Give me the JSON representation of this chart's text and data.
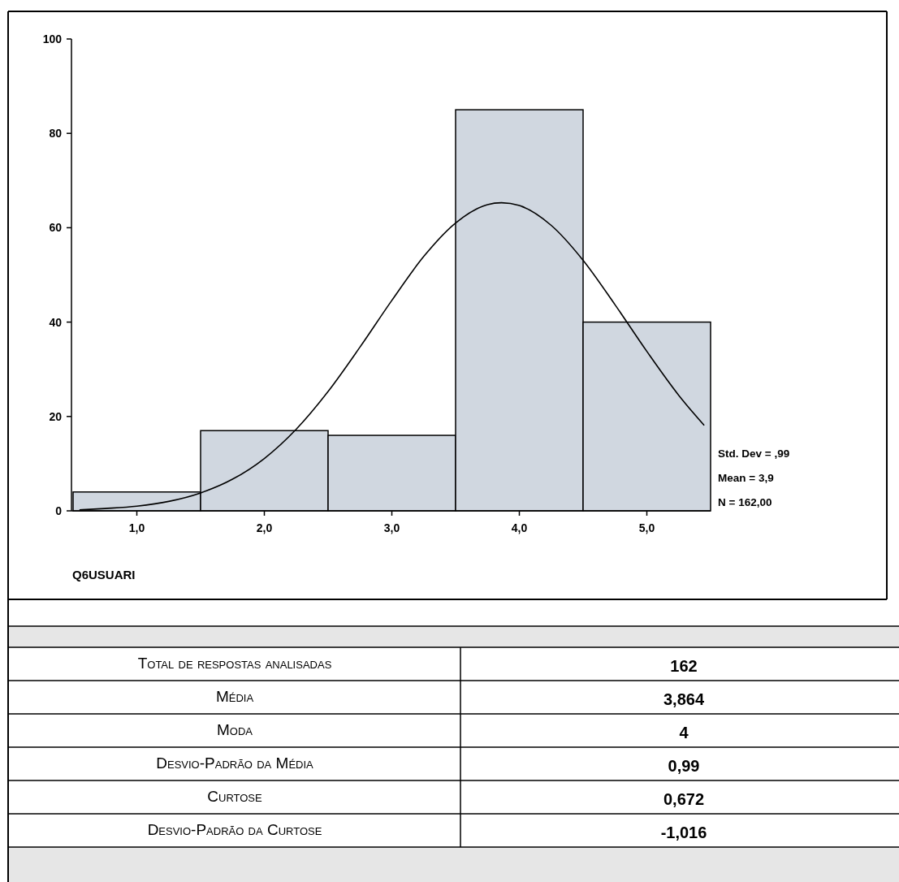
{
  "chart_data": [
    {
      "type": "histogram",
      "xlabel": "Q6USUARI",
      "bins": [
        0.5,
        1.5,
        2.5,
        3.5,
        4.5,
        5.5
      ],
      "values": [
        4,
        17,
        16,
        85,
        40
      ],
      "color": "#d0d7e0",
      "xlim": [
        0.5,
        5.5
      ],
      "xticks": [
        {
          "value": 1,
          "label": "1,0"
        },
        {
          "value": 2,
          "label": "2,0"
        },
        {
          "value": 3,
          "label": "3,0"
        },
        {
          "value": 4,
          "label": "4,0"
        },
        {
          "value": 5,
          "label": "5,0"
        }
      ],
      "ylim": [
        0,
        100
      ],
      "yticks": [
        0,
        20,
        40,
        60,
        80,
        100
      ],
      "series": [
        {
          "type": "line",
          "color": "#000000",
          "x": [
            0.55,
            0.75,
            1.0,
            1.25,
            1.5,
            1.75,
            2.0,
            2.25,
            2.5,
            2.75,
            3.0,
            3.25,
            3.5,
            3.75,
            3.86,
            4.0,
            4.25,
            4.5,
            4.75,
            5.0,
            5.25,
            5.45
          ],
          "values": [
            0.2,
            0.5,
            1.0,
            2.0,
            3.8,
            6.7,
            11.1,
            17.3,
            25.3,
            34.7,
            44.6,
            53.9,
            61.0,
            64.9,
            65.3,
            64.7,
            60.5,
            53.1,
            43.7,
            33.8,
            24.5,
            18.1
          ]
        }
      ],
      "annotations": [
        "Std. Dev = ,99",
        "Mean = 3,9",
        "N = 162,00"
      ]
    },
    {
      "type": "other",
      "annotations": [
        "Total de respostas analisadas",
        "162",
        "Média",
        "3,864",
        "Moda",
        "4",
        "Desvio-Padrão da Média",
        "0,99",
        "Curtose",
        "0,672",
        "Desvio-Padrão da Curtose",
        "-1,016"
      ]
    }
  ]
}
